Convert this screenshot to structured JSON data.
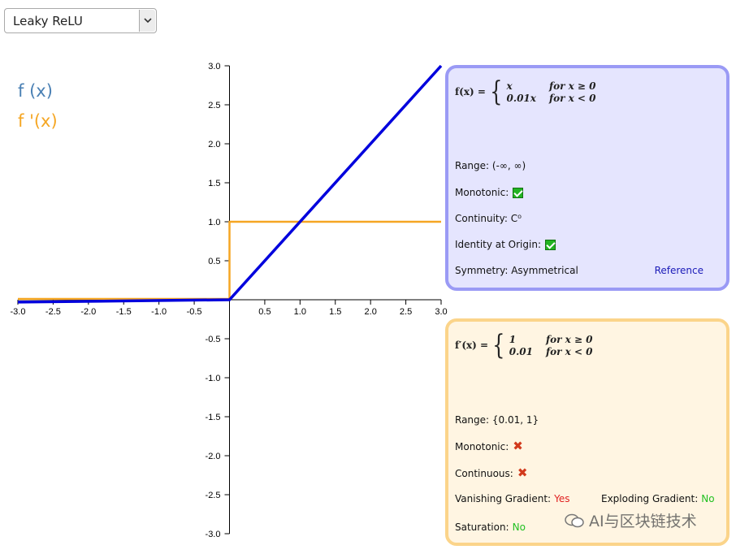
{
  "dropdown": {
    "selected": "Leaky ReLU"
  },
  "legend": {
    "f": {
      "label": "f (x)",
      "color": "#4a80b4"
    },
    "df": {
      "label": "f '(x)",
      "color": "#f5a623"
    }
  },
  "chart_data": {
    "type": "line",
    "xlim": [
      -3.0,
      3.0
    ],
    "ylim": [
      -3.0,
      3.0
    ],
    "x_ticks": [
      "-3.0",
      "-2.5",
      "-2.0",
      "-1.5",
      "-1.0",
      "-0.5",
      "0.5",
      "1.0",
      "1.5",
      "2.0",
      "2.5",
      "3.0"
    ],
    "y_ticks": [
      "3.0",
      "2.5",
      "2.0",
      "1.5",
      "1.0",
      "0.5",
      "-0.5",
      "-1.0",
      "-1.5",
      "-2.0",
      "-2.5",
      "-3.0"
    ],
    "series": [
      {
        "name": "f (x)",
        "color": "#0000dd",
        "x": [
          -3.0,
          0.0,
          3.0
        ],
        "y": [
          -0.03,
          0.0,
          3.0
        ]
      },
      {
        "name": "f '(x)",
        "color": "#f5a623",
        "x": [
          -3.0,
          0.0,
          0.0,
          3.0
        ],
        "y": [
          0.01,
          0.01,
          1.0,
          1.0
        ]
      }
    ]
  },
  "panel_f": {
    "formula_lhs": "f(x) =",
    "cases": [
      {
        "expr": "x",
        "cond": "for x ≥ 0"
      },
      {
        "expr": "0.01x",
        "cond": "for x < 0"
      }
    ],
    "range_label": "Range:",
    "range_value": "(-∞, ∞)",
    "monotonic_label": "Monotonic:",
    "monotonic": true,
    "continuity_label": "Continuity:",
    "continuity_value": "C⁰",
    "identity_label": "Identity at Origin:",
    "identity": true,
    "symmetry_label": "Symmetry:",
    "symmetry_value": "Asymmetrical",
    "reference_label": "Reference"
  },
  "panel_df": {
    "formula_lhs": "f′(x) =",
    "cases": [
      {
        "expr": "1",
        "cond": "for x ≥ 0"
      },
      {
        "expr": "0.01",
        "cond": "for x < 0"
      }
    ],
    "range_label": "Range:",
    "range_value": "{0.01, 1}",
    "monotonic_label": "Monotonic:",
    "monotonic": false,
    "continuous_label": "Continuous:",
    "continuous": false,
    "vanishing_label": "Vanishing Gradient:",
    "vanishing_value": "Yes",
    "exploding_label": "Exploding Gradient:",
    "exploding_value": "No",
    "saturation_label": "Saturation:",
    "saturation_value": "No"
  },
  "watermark": {
    "text": "AI与区块链技术"
  }
}
